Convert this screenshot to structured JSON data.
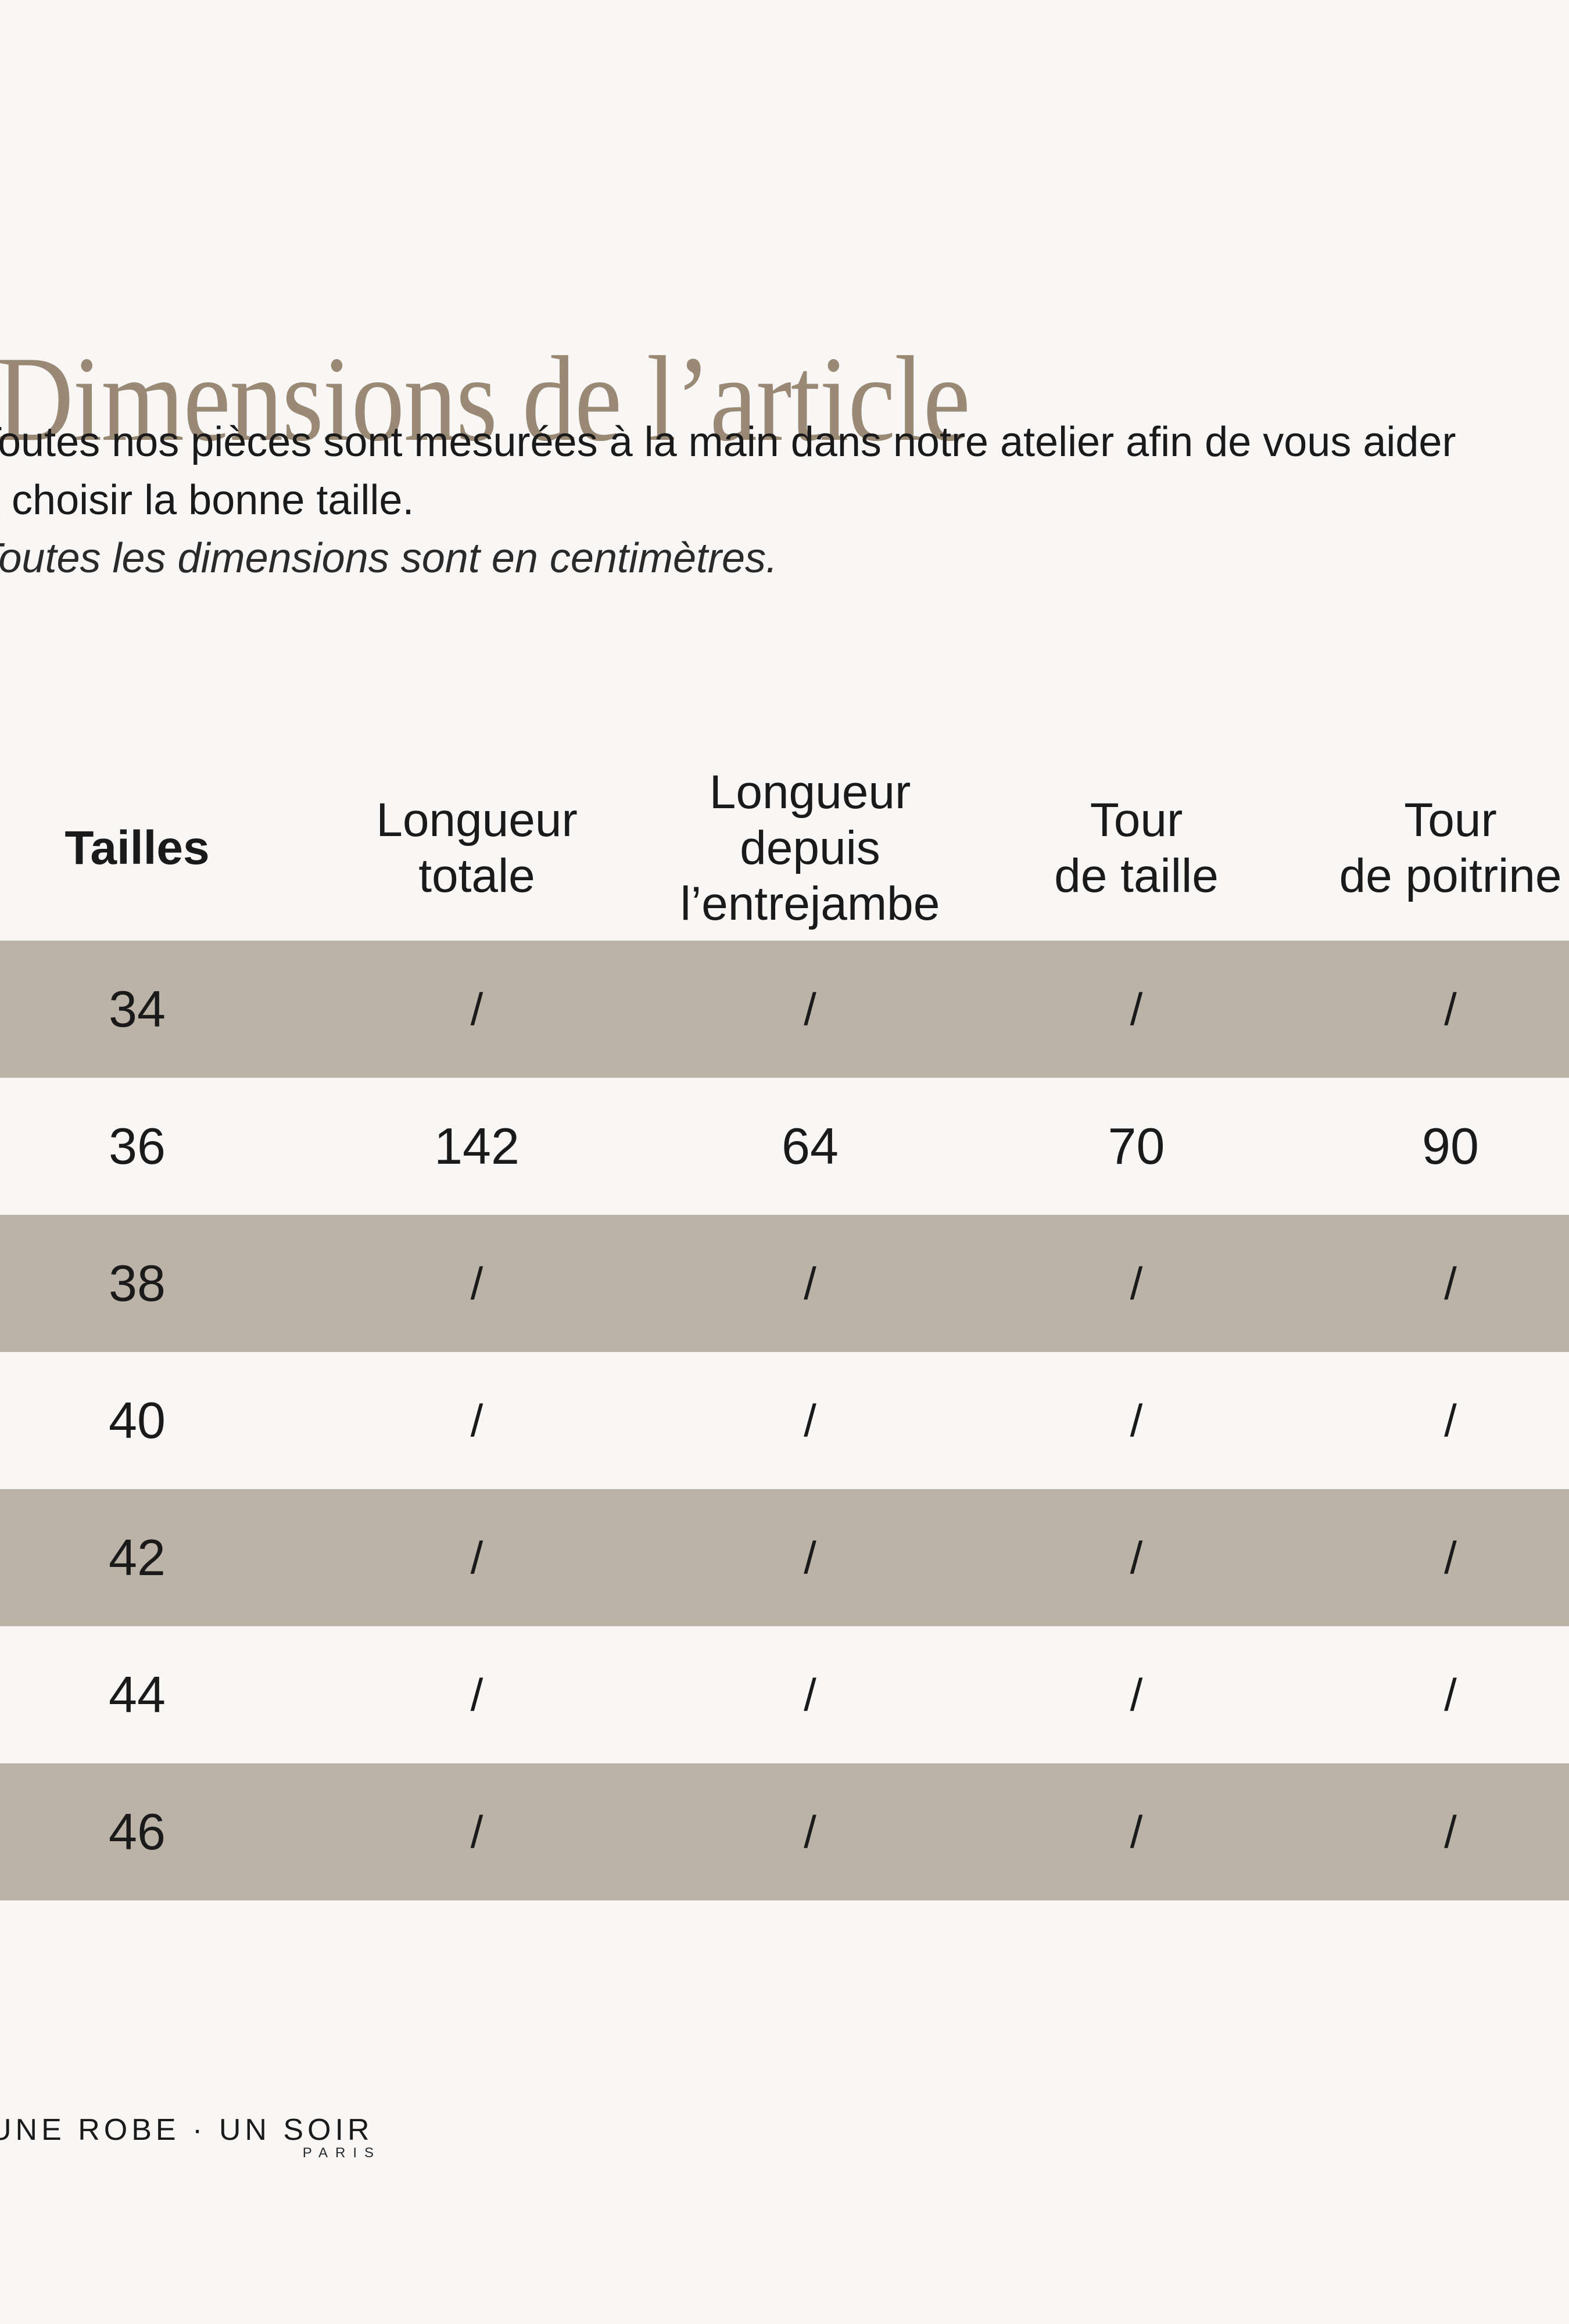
{
  "colors": {
    "background": "#f8f7f6",
    "row_beige": "#bbb3a7",
    "title_taupe": "#9a8a75",
    "text": "#1a1a1a"
  },
  "header": {
    "title": "Dimensions de l’article"
  },
  "intro": {
    "line1": "Toutes nos pièces sont mesurées à la main dans notre atelier afin de vous aider",
    "line2": "à choisir la bonne taille.",
    "note": "Toutes les dimensions sont en centimètres."
  },
  "table": {
    "headers": [
      "Tailles",
      "Longueur\ntotale",
      "Longueur\ndepuis\nl’entrejambe",
      "Tour\nde taille",
      "Tour\nde poitrine"
    ],
    "rows": [
      {
        "size": "34",
        "values": [
          "/",
          "/",
          "/",
          "/"
        ]
      },
      {
        "size": "36",
        "values": [
          "142",
          "64",
          "70",
          "90"
        ]
      },
      {
        "size": "38",
        "values": [
          "/",
          "/",
          "/",
          "/"
        ]
      },
      {
        "size": "40",
        "values": [
          "/",
          "/",
          "/",
          "/"
        ]
      },
      {
        "size": "42",
        "values": [
          "/",
          "/",
          "/",
          "/"
        ]
      },
      {
        "size": "44",
        "values": [
          "/",
          "/",
          "/",
          "/"
        ]
      },
      {
        "size": "46",
        "values": [
          "/",
          "/",
          "/",
          "/"
        ]
      }
    ]
  },
  "footer": {
    "brand": "UNE ROBE · UN SOIR",
    "city": "PARIS"
  }
}
